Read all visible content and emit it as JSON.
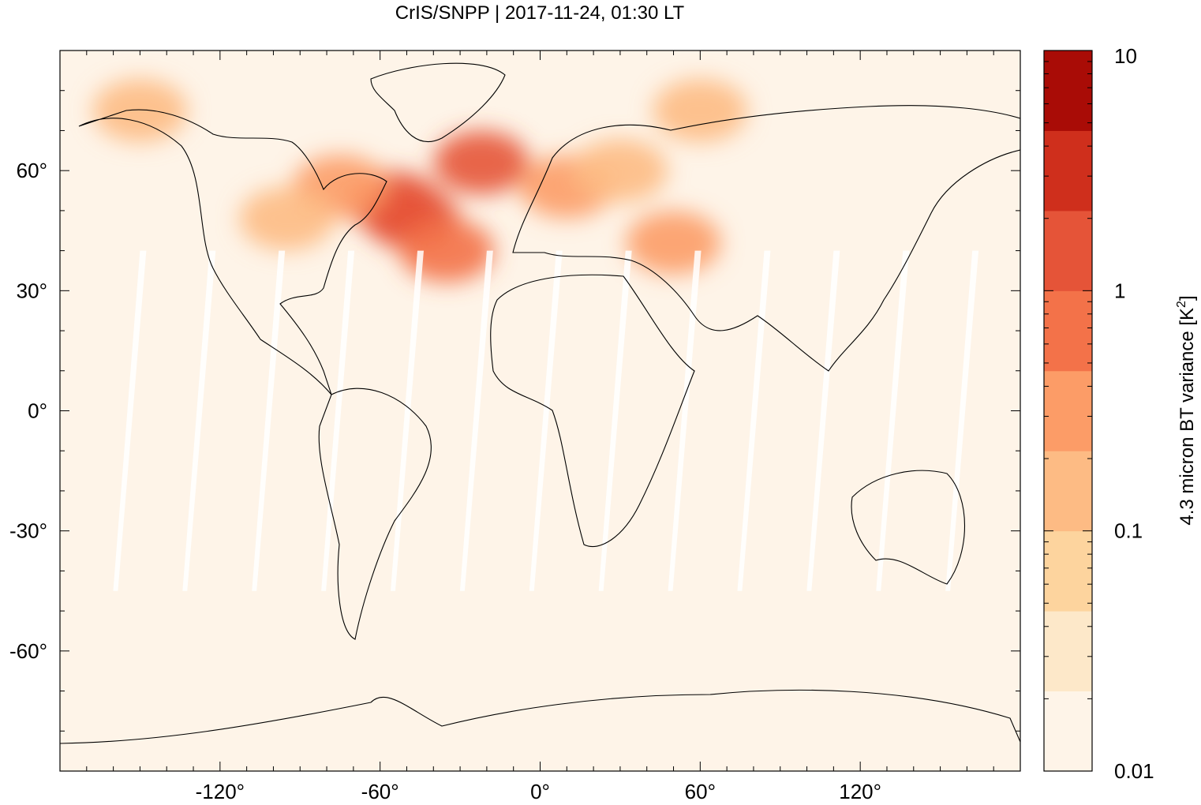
{
  "title": "CrIS/SNPP | 2017-11-24, 01:30 LT",
  "chart_data": {
    "type": "heatmap",
    "title": "CrIS/SNPP | 2017-11-24, 01:30 LT",
    "xlabel": "",
    "ylabel": "",
    "x_range": [
      -180,
      180
    ],
    "y_range": [
      -90,
      90
    ],
    "x_ticks": [
      -120,
      -60,
      0,
      60,
      120
    ],
    "x_tick_labels": [
      "-120°",
      "-60°",
      "0°",
      "60°",
      "120°"
    ],
    "y_ticks": [
      60,
      30,
      0,
      -30,
      -60
    ],
    "y_tick_labels": [
      "60°",
      "30°",
      "0°",
      "-30°",
      "-60°"
    ],
    "background_value": 0.01,
    "regions": [
      {
        "lon": -48,
        "lat": 48,
        "value": 1.5
      },
      {
        "lon": -55,
        "lat": 52,
        "value": 1.2
      },
      {
        "lon": -22,
        "lat": 62,
        "value": 1.0
      },
      {
        "lon": -35,
        "lat": 40,
        "value": 0.6
      },
      {
        "lon": -75,
        "lat": 56,
        "value": 0.35
      },
      {
        "lon": -95,
        "lat": 48,
        "value": 0.2
      },
      {
        "lon": 10,
        "lat": 56,
        "value": 0.3
      },
      {
        "lon": 30,
        "lat": 60,
        "value": 0.2
      },
      {
        "lon": 50,
        "lat": 42,
        "value": 0.3
      },
      {
        "lon": -150,
        "lat": 75,
        "value": 0.12
      },
      {
        "lon": 60,
        "lat": 75,
        "value": 0.12
      }
    ],
    "grid": false,
    "colorbar": {
      "scale": "log",
      "range": [
        0.01,
        10
      ],
      "label_main": "4.3 micron BT variance [K",
      "label_sup": "2",
      "label_end": "]",
      "tick_labels": [
        "10",
        "1",
        "0.1",
        "0.01"
      ],
      "tick_values": [
        10,
        1,
        0.1,
        0.01
      ],
      "colors": [
        "#fef4e8",
        "#fde8c9",
        "#fdd49e",
        "#fdbb84",
        "#fc9c67",
        "#f37249",
        "#e55438",
        "#cf2f1c",
        "#a90c06"
      ],
      "legend_position": "right"
    },
    "map_colors": {
      "ocean_background": "#fef4e8",
      "coastline": "#000000",
      "swath_gap": "#ffffff"
    }
  }
}
